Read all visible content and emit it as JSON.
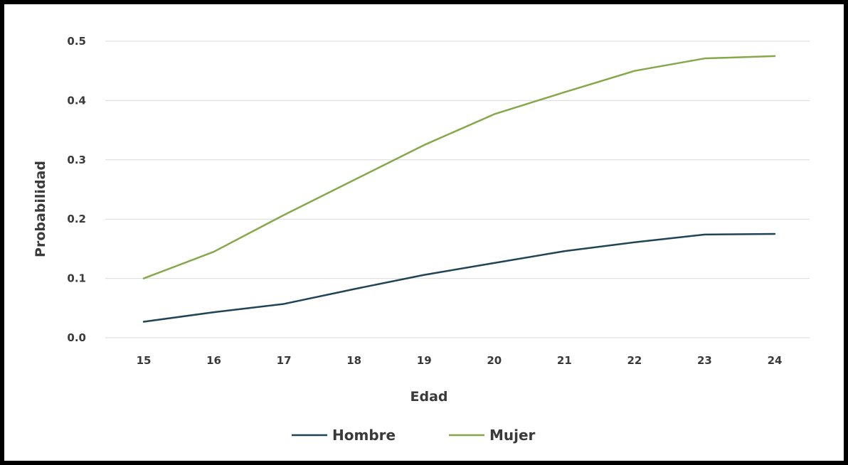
{
  "chart_data": {
    "type": "line",
    "x": [
      15,
      16,
      17,
      18,
      19,
      20,
      21,
      22,
      23,
      24
    ],
    "xticks": [
      "15",
      "16",
      "17",
      "18",
      "19",
      "20",
      "21",
      "22",
      "23",
      "24"
    ],
    "yticks": [
      "0.0",
      "0.1",
      "0.2",
      "0.3",
      "0.4",
      "0.5"
    ],
    "ylim": [
      0,
      0.5
    ],
    "xlabel": "Edad",
    "ylabel": "Probabilidad",
    "grid": "horizontal",
    "legend": "bottom-center",
    "series": [
      {
        "name": "Hombre",
        "color": "#1f4457",
        "values": [
          0.027,
          0.043,
          0.057,
          0.082,
          0.106,
          0.126,
          0.146,
          0.161,
          0.174,
          0.175
        ]
      },
      {
        "name": "Mujer",
        "color": "#86a84a",
        "values": [
          0.1,
          0.145,
          0.207,
          0.266,
          0.325,
          0.377,
          0.414,
          0.45,
          0.471,
          0.475
        ]
      }
    ]
  }
}
